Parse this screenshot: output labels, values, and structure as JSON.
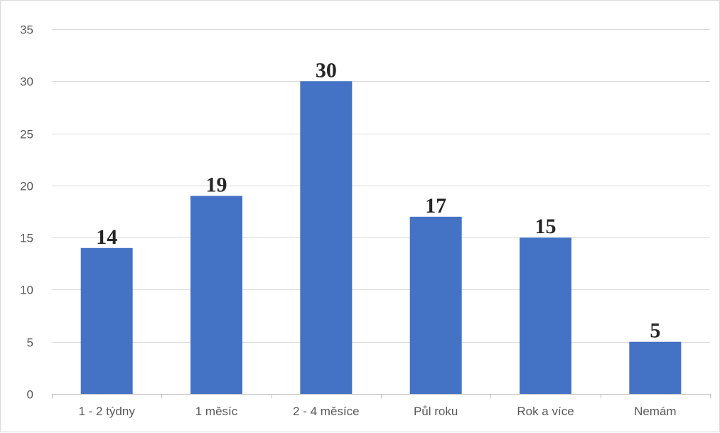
{
  "chart_data": {
    "type": "bar",
    "categories": [
      "1 - 2 týdny",
      "1 měsíc",
      "2 - 4 měsíce",
      "Půl roku",
      "Rok a více",
      "Nemám"
    ],
    "values": [
      14,
      19,
      30,
      17,
      15,
      5
    ],
    "data_labels": [
      "14",
      "19",
      "30",
      "17",
      "15",
      "5"
    ],
    "ylim": [
      0,
      35
    ],
    "yticks": [
      0,
      5,
      10,
      15,
      20,
      25,
      30,
      35
    ],
    "grid": true,
    "legend": "none",
    "colors": {
      "bar": "#4472c4",
      "grid": "#d9d9d9",
      "axis_text": "#595959",
      "data_label": "#262626"
    }
  }
}
